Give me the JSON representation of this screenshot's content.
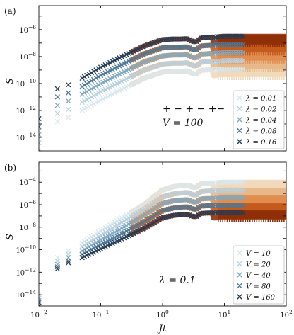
{
  "chart_data": [
    {
      "type": "scatter",
      "panel_label": "(a)",
      "xlabel": "",
      "ylabel": "S",
      "x_scale": "log",
      "y_scale": "log",
      "xlim": [
        0.01,
        100
      ],
      "ylim": [
        1e-15,
        6e-05
      ],
      "y_tick_labels": [
        "10^-14",
        "10^-12",
        "10^-10",
        "10^-8",
        "10^-6"
      ],
      "annotation": [
        "+ − + − +−",
        "V = 100"
      ],
      "legend_position": "lower-right",
      "line_colors": [
        "#f1d9bc",
        "#e9b889",
        "#e08d4f",
        "#c55a1d",
        "#8e2f08"
      ],
      "series": [
        {
          "name": "λ = 0.01",
          "color": "#d8e8ef",
          "x": [
            0.01,
            0.02,
            0.03,
            0.05,
            0.1,
            0.2,
            0.5,
            1,
            1.5,
            2,
            3,
            5,
            10,
            100
          ],
          "y": [
            1e-15,
            1.5e-13,
            3e-13,
            1e-12,
            6e-12,
            3e-11,
            2.5e-10,
            7e-10,
            8e-10,
            8e-10,
            9e-10,
            1e-09,
            1.2e-09,
            1.2e-09
          ]
        },
        {
          "name": "λ = 0.02",
          "color": "#b7d1e0",
          "x": [
            0.01,
            0.02,
            0.03,
            0.05,
            0.1,
            0.2,
            0.5,
            1,
            1.5,
            2,
            3,
            5,
            10,
            100
          ],
          "y": [
            4e-15,
            6e-13,
            1.2e-12,
            4e-12,
            2.5e-11,
            1.2e-10,
            1e-09,
            2.8e-09,
            3.2e-09,
            3.2e-09,
            3.6e-09,
            4e-09,
            5e-09,
            5e-09
          ]
        },
        {
          "name": "λ = 0.04",
          "color": "#7fa9c2",
          "x": [
            0.01,
            0.02,
            0.03,
            0.05,
            0.1,
            0.2,
            0.5,
            1,
            1.5,
            2,
            3,
            5,
            10,
            100
          ],
          "y": [
            1.6e-14,
            2.4e-12,
            5e-12,
            1.6e-11,
            1e-10,
            5e-10,
            4e-09,
            1.1e-08,
            1.3e-08,
            1.3e-08,
            1.4e-08,
            1.6e-08,
            2e-08,
            2e-08
          ]
        },
        {
          "name": "λ = 0.08",
          "color": "#4d7896",
          "x": [
            0.01,
            0.02,
            0.03,
            0.05,
            0.1,
            0.2,
            0.5,
            1,
            1.5,
            2,
            3,
            5,
            10,
            100
          ],
          "y": [
            6e-14,
            1e-11,
            2e-11,
            6e-11,
            4e-10,
            2e-09,
            1.6e-08,
            4.5e-08,
            5e-08,
            5e-08,
            5.5e-08,
            6.5e-08,
            8e-08,
            8e-08
          ]
        },
        {
          "name": "λ = 0.16",
          "color": "#243b55",
          "x": [
            0.01,
            0.02,
            0.03,
            0.05,
            0.1,
            0.2,
            0.5,
            1,
            1.5,
            2,
            3,
            5,
            10,
            100
          ],
          "y": [
            2.5e-13,
            4e-11,
            8e-11,
            2.5e-10,
            1.6e-09,
            8e-09,
            6e-08,
            1.8e-07,
            2e-07,
            2e-07,
            2.2e-07,
            2.6e-07,
            3.2e-07,
            3.2e-07
          ]
        }
      ]
    },
    {
      "type": "scatter",
      "panel_label": "(b)",
      "xlabel": "Jt",
      "ylabel": "S",
      "x_scale": "log",
      "y_scale": "log",
      "xlim": [
        0.01,
        100
      ],
      "ylim": [
        1e-15,
        0.006
      ],
      "x_tick_labels": [
        "10^-2",
        "10^-1",
        "10^0",
        "10^1",
        "10^2"
      ],
      "y_tick_labels": [
        "10^-14",
        "10^-12",
        "10^-10",
        "10^-8",
        "10^-6",
        "10^-4"
      ],
      "annotation": [
        "λ = 0.1"
      ],
      "legend_position": "lower-right",
      "line_colors": [
        "#f1d9bc",
        "#e9b889",
        "#e08d4f",
        "#c55a1d",
        "#8e2f08"
      ],
      "series": [
        {
          "name": "V = 10",
          "color": "#d8e8ef",
          "x": [
            0.01,
            0.02,
            0.03,
            0.05,
            0.1,
            0.2,
            0.5,
            1,
            1.5,
            2,
            3,
            5,
            10,
            100
          ],
          "y": [
            1e-14,
            2e-11,
            8e-11,
            4e-10,
            5e-09,
            5e-08,
            1e-06,
            2e-05,
            4e-05,
            5e-05,
            6e-05,
            8e-05,
            0.0001,
            0.0001
          ]
        },
        {
          "name": "V = 20",
          "color": "#b7d1e0",
          "x": [
            0.01,
            0.02,
            0.03,
            0.05,
            0.1,
            0.2,
            0.5,
            1,
            1.5,
            2,
            3,
            5,
            10,
            100
          ],
          "y": [
            5e-15,
            1e-11,
            4e-11,
            2e-10,
            2e-09,
            2e-08,
            4e-07,
            5e-06,
            9e-06,
            1.1e-05,
            1.3e-05,
            1.6e-05,
            2e-05,
            2e-05
          ]
        },
        {
          "name": "V = 40",
          "color": "#7fa9c2",
          "x": [
            0.01,
            0.02,
            0.03,
            0.05,
            0.1,
            0.2,
            0.5,
            1,
            1.5,
            2,
            3,
            5,
            10,
            100
          ],
          "y": [
            3e-15,
            5e-12,
            2e-11,
            8e-11,
            8e-10,
            6e-09,
            1.2e-07,
            1.3e-06,
            2.2e-06,
            2.6e-06,
            3e-06,
            3.5e-06,
            4e-06,
            4e-06
          ]
        },
        {
          "name": "V = 80",
          "color": "#4d7896",
          "x": [
            0.01,
            0.02,
            0.03,
            0.05,
            0.1,
            0.2,
            0.5,
            1,
            1.5,
            2,
            3,
            5,
            10,
            100
          ],
          "y": [
            2e-15,
            3e-12,
            1e-11,
            4e-11,
            3e-10,
            2e-09,
            3e-08,
            3e-07,
            5e-07,
            6e-07,
            7e-07,
            8e-07,
            9e-07,
            9e-07
          ]
        },
        {
          "name": "V = 160",
          "color": "#243b55",
          "x": [
            0.01,
            0.02,
            0.03,
            0.05,
            0.1,
            0.2,
            0.5,
            1,
            1.5,
            2,
            3,
            5,
            10,
            100
          ],
          "y": [
            1e-15,
            2e-12,
            7e-12,
            2e-11,
            1.2e-10,
            7e-10,
            8e-09,
            7e-08,
            1.1e-07,
            1.3e-07,
            1.5e-07,
            1.8e-07,
            2e-07,
            2e-07
          ]
        }
      ]
    }
  ]
}
